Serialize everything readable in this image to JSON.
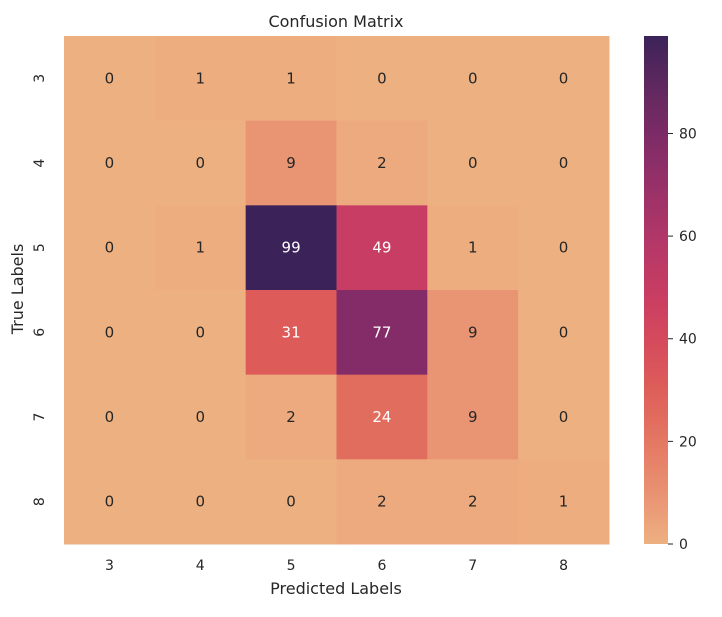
{
  "chart_data": {
    "type": "heatmap",
    "title": "Confusion Matrix",
    "xlabel": "Predicted Labels",
    "ylabel": "True Labels",
    "x_categories": [
      "3",
      "4",
      "5",
      "6",
      "7",
      "8"
    ],
    "y_categories": [
      "3",
      "4",
      "5",
      "6",
      "7",
      "8"
    ],
    "values": [
      [
        0,
        1,
        1,
        0,
        0,
        0
      ],
      [
        0,
        0,
        9,
        2,
        0,
        0
      ],
      [
        0,
        1,
        99,
        49,
        1,
        0
      ],
      [
        0,
        0,
        31,
        77,
        9,
        0
      ],
      [
        0,
        0,
        2,
        24,
        9,
        0
      ],
      [
        0,
        0,
        0,
        2,
        2,
        1
      ]
    ],
    "colormap": "flare",
    "colorbar": {
      "ticks": [
        0,
        20,
        40,
        60,
        80
      ],
      "range": [
        0,
        99
      ]
    },
    "colors": {
      "low": "#edb081",
      "high": "#3b2359"
    }
  }
}
